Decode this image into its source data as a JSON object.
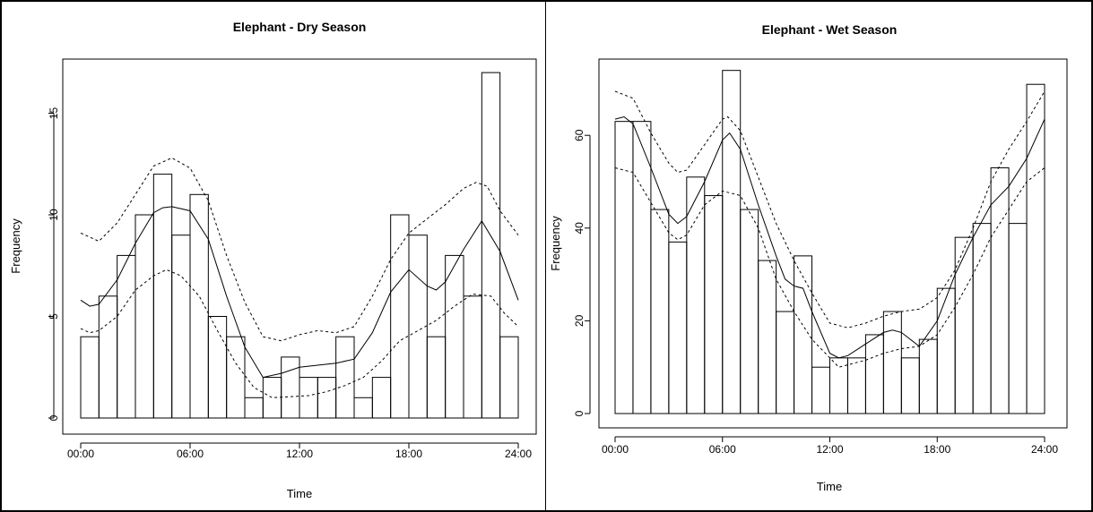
{
  "chart_data": [
    {
      "type": "histogram-with-density",
      "title": "Elephant - Dry Season",
      "xlabel": "Time",
      "ylabel": "Frequency",
      "xlim": [
        0,
        24
      ],
      "ylim": [
        0,
        17.5
      ],
      "x_ticks": [
        0,
        6,
        12,
        18,
        24
      ],
      "x_tick_labels": [
        "00:00",
        "06:00",
        "12:00",
        "18:00",
        "24:00"
      ],
      "y_ticks": [
        0,
        5,
        10,
        15
      ],
      "y_tick_labels": [
        "0",
        "5",
        "10",
        "15"
      ],
      "grid": false,
      "bins": [
        {
          "start": 0,
          "end": 1,
          "count": 4
        },
        {
          "start": 1,
          "end": 2,
          "count": 6
        },
        {
          "start": 2,
          "end": 3,
          "count": 8
        },
        {
          "start": 3,
          "end": 4,
          "count": 10
        },
        {
          "start": 4,
          "end": 5,
          "count": 12
        },
        {
          "start": 5,
          "end": 6,
          "count": 9
        },
        {
          "start": 6,
          "end": 7,
          "count": 11
        },
        {
          "start": 7,
          "end": 8,
          "count": 5
        },
        {
          "start": 8,
          "end": 9,
          "count": 4
        },
        {
          "start": 9,
          "end": 10,
          "count": 1
        },
        {
          "start": 10,
          "end": 11,
          "count": 2
        },
        {
          "start": 11,
          "end": 12,
          "count": 3
        },
        {
          "start": 12,
          "end": 13,
          "count": 2
        },
        {
          "start": 13,
          "end": 14,
          "count": 2
        },
        {
          "start": 14,
          "end": 15,
          "count": 4
        },
        {
          "start": 15,
          "end": 16,
          "count": 1
        },
        {
          "start": 16,
          "end": 17,
          "count": 2
        },
        {
          "start": 17,
          "end": 18,
          "count": 10
        },
        {
          "start": 18,
          "end": 19,
          "count": 9
        },
        {
          "start": 19,
          "end": 20,
          "count": 4
        },
        {
          "start": 20,
          "end": 21,
          "count": 8
        },
        {
          "start": 21,
          "end": 22,
          "count": 6
        },
        {
          "start": 22,
          "end": 23,
          "count": 17
        },
        {
          "start": 23,
          "end": 24,
          "count": 4
        }
      ],
      "curves": [
        {
          "style": "solid",
          "points": [
            [
              0,
              5.8
            ],
            [
              0.5,
              5.5
            ],
            [
              1,
              5.6
            ],
            [
              2,
              6.8
            ],
            [
              3,
              8.6
            ],
            [
              4,
              10.1
            ],
            [
              4.5,
              10.35
            ],
            [
              5,
              10.4
            ],
            [
              6,
              10.2
            ],
            [
              7,
              8.8
            ],
            [
              8,
              6.0
            ],
            [
              9,
              3.5
            ],
            [
              10,
              2.0
            ],
            [
              11,
              2.2
            ],
            [
              12,
              2.5
            ],
            [
              13,
              2.6
            ],
            [
              14,
              2.7
            ],
            [
              15,
              2.9
            ],
            [
              16,
              4.2
            ],
            [
              17,
              6.2
            ],
            [
              18,
              7.3
            ],
            [
              19,
              6.5
            ],
            [
              19.5,
              6.3
            ],
            [
              20,
              6.7
            ],
            [
              21,
              8.3
            ],
            [
              22,
              9.7
            ],
            [
              23,
              8.2
            ],
            [
              24,
              5.8
            ]
          ]
        },
        {
          "style": "dashed",
          "points": [
            [
              0,
              9.1
            ],
            [
              1,
              8.7
            ],
            [
              2,
              9.6
            ],
            [
              3,
              11.0
            ],
            [
              4,
              12.4
            ],
            [
              5,
              12.8
            ],
            [
              6,
              12.3
            ],
            [
              7,
              10.7
            ],
            [
              8,
              8.0
            ],
            [
              9,
              5.7
            ],
            [
              10,
              4.0
            ],
            [
              11,
              3.8
            ],
            [
              12,
              4.1
            ],
            [
              13,
              4.3
            ],
            [
              14,
              4.2
            ],
            [
              15,
              4.5
            ],
            [
              16,
              6.0
            ],
            [
              17,
              7.8
            ],
            [
              18,
              9.1
            ],
            [
              19,
              9.8
            ],
            [
              20,
              10.5
            ],
            [
              21,
              11.3
            ],
            [
              21.7,
              11.6
            ],
            [
              22.3,
              11.4
            ],
            [
              23,
              10.2
            ],
            [
              24,
              9.0
            ]
          ]
        },
        {
          "style": "dashed",
          "points": [
            [
              0,
              4.4
            ],
            [
              0.5,
              4.2
            ],
            [
              1,
              4.3
            ],
            [
              2,
              5.0
            ],
            [
              3,
              6.3
            ],
            [
              4,
              7.0
            ],
            [
              4.7,
              7.3
            ],
            [
              5.5,
              7.0
            ],
            [
              6.5,
              6.0
            ],
            [
              7.5,
              4.3
            ],
            [
              8.5,
              2.7
            ],
            [
              9.5,
              1.5
            ],
            [
              10.5,
              1.0
            ],
            [
              11.5,
              1.05
            ],
            [
              12.5,
              1.1
            ],
            [
              13.5,
              1.3
            ],
            [
              14.5,
              1.6
            ],
            [
              15.5,
              2.0
            ],
            [
              16.5,
              2.8
            ],
            [
              17.5,
              3.8
            ],
            [
              18.5,
              4.3
            ],
            [
              19.5,
              4.8
            ],
            [
              20.5,
              5.5
            ],
            [
              21.5,
              6.1
            ],
            [
              22.5,
              6.0
            ],
            [
              23.2,
              5.2
            ],
            [
              24,
              4.5
            ]
          ]
        }
      ]
    },
    {
      "type": "histogram-with-density",
      "title": "Elephant - Wet Season",
      "xlabel": "Time",
      "ylabel": "Frequency",
      "xlim": [
        0,
        24
      ],
      "ylim": [
        0,
        74
      ],
      "x_ticks": [
        0,
        6,
        12,
        18,
        24
      ],
      "x_tick_labels": [
        "00:00",
        "06:00",
        "12:00",
        "18:00",
        "24:00"
      ],
      "y_ticks": [
        0,
        20,
        40,
        60
      ],
      "y_tick_labels": [
        "0",
        "20",
        "40",
        "60"
      ],
      "grid": false,
      "bins": [
        {
          "start": 0,
          "end": 1,
          "count": 63
        },
        {
          "start": 1,
          "end": 2,
          "count": 63
        },
        {
          "start": 2,
          "end": 3,
          "count": 44
        },
        {
          "start": 3,
          "end": 4,
          "count": 37
        },
        {
          "start": 4,
          "end": 5,
          "count": 51
        },
        {
          "start": 5,
          "end": 6,
          "count": 47
        },
        {
          "start": 6,
          "end": 7,
          "count": 74
        },
        {
          "start": 7,
          "end": 8,
          "count": 44
        },
        {
          "start": 8,
          "end": 9,
          "count": 33
        },
        {
          "start": 9,
          "end": 10,
          "count": 22
        },
        {
          "start": 10,
          "end": 11,
          "count": 34
        },
        {
          "start": 11,
          "end": 12,
          "count": 10
        },
        {
          "start": 12,
          "end": 13,
          "count": 12
        },
        {
          "start": 13,
          "end": 14,
          "count": 12
        },
        {
          "start": 14,
          "end": 15,
          "count": 17
        },
        {
          "start": 15,
          "end": 16,
          "count": 22
        },
        {
          "start": 16,
          "end": 17,
          "count": 12
        },
        {
          "start": 17,
          "end": 18,
          "count": 16
        },
        {
          "start": 18,
          "end": 19,
          "count": 27
        },
        {
          "start": 19,
          "end": 20,
          "count": 38
        },
        {
          "start": 20,
          "end": 21,
          "count": 41
        },
        {
          "start": 21,
          "end": 22,
          "count": 53
        },
        {
          "start": 22,
          "end": 23,
          "count": 41
        },
        {
          "start": 23,
          "end": 24,
          "count": 71
        }
      ],
      "curves": [
        {
          "style": "solid",
          "points": [
            [
              0,
              63.5
            ],
            [
              0.5,
              64
            ],
            [
              1,
              62.5
            ],
            [
              2,
              53
            ],
            [
              3,
              43
            ],
            [
              3.5,
              41
            ],
            [
              4,
              42.5
            ],
            [
              5,
              50
            ],
            [
              6,
              59
            ],
            [
              6.4,
              60.5
            ],
            [
              7,
              57
            ],
            [
              8,
              45
            ],
            [
              9,
              34
            ],
            [
              9.5,
              29
            ],
            [
              10,
              27.5
            ],
            [
              10.5,
              27
            ],
            [
              11,
              22
            ],
            [
              12,
              13
            ],
            [
              12.5,
              12
            ],
            [
              13,
              12.5
            ],
            [
              14,
              15
            ],
            [
              15,
              17.5
            ],
            [
              15.5,
              18
            ],
            [
              16,
              17.5
            ],
            [
              17,
              14.5
            ],
            [
              18,
              20
            ],
            [
              19,
              30
            ],
            [
              20,
              38
            ],
            [
              21,
              45
            ],
            [
              22,
              49
            ],
            [
              23,
              55
            ],
            [
              24,
              63.5
            ]
          ]
        },
        {
          "style": "dashed",
          "points": [
            [
              0,
              69.5
            ],
            [
              1,
              68
            ],
            [
              2,
              60.5
            ],
            [
              3,
              54
            ],
            [
              3.5,
              52
            ],
            [
              4,
              52.5
            ],
            [
              5,
              58
            ],
            [
              6,
              63.5
            ],
            [
              6.3,
              64
            ],
            [
              7,
              61
            ],
            [
              8,
              51
            ],
            [
              9,
              41
            ],
            [
              10,
              33
            ],
            [
              11,
              26
            ],
            [
              12,
              19.5
            ],
            [
              13,
              18.5
            ],
            [
              14,
              19.5
            ],
            [
              15,
              21
            ],
            [
              16,
              22
            ],
            [
              17,
              22.5
            ],
            [
              18,
              25
            ],
            [
              19,
              31
            ],
            [
              20,
              40
            ],
            [
              21,
              50
            ],
            [
              22,
              57
            ],
            [
              23,
              63
            ],
            [
              24,
              69.5
            ]
          ]
        },
        {
          "style": "dashed",
          "points": [
            [
              0,
              53
            ],
            [
              1,
              52
            ],
            [
              2,
              45.5
            ],
            [
              3,
              39
            ],
            [
              3.5,
              37.5
            ],
            [
              4,
              38.5
            ],
            [
              5,
              45
            ],
            [
              6,
              48
            ],
            [
              7,
              47
            ],
            [
              8,
              40
            ],
            [
              9,
              29
            ],
            [
              10,
              22
            ],
            [
              11,
              16
            ],
            [
              12,
              12
            ],
            [
              12.5,
              10
            ],
            [
              13,
              10.5
            ],
            [
              14,
              11.5
            ],
            [
              15,
              13
            ],
            [
              16,
              14
            ],
            [
              17,
              14.5
            ],
            [
              18,
              17
            ],
            [
              19,
              23
            ],
            [
              20,
              30
            ],
            [
              21,
              38
            ],
            [
              22,
              44
            ],
            [
              23,
              50
            ],
            [
              24,
              53
            ]
          ]
        }
      ]
    }
  ]
}
